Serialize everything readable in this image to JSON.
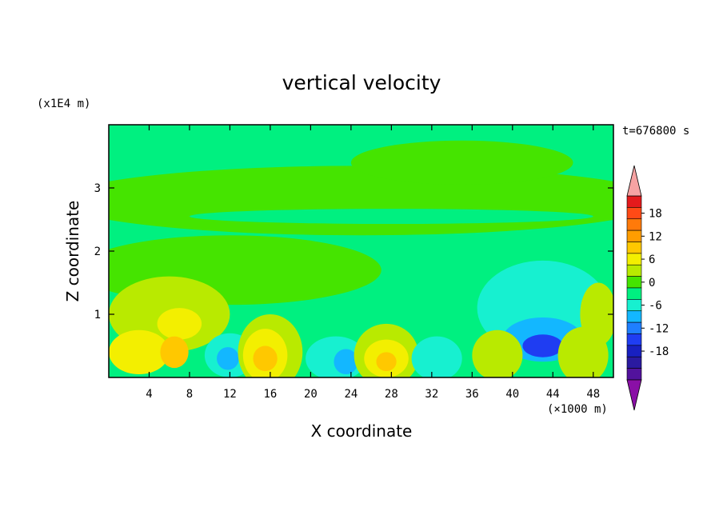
{
  "chart_data": {
    "type": "heatmap",
    "title": "vertical velocity",
    "xlabel": "X coordinate",
    "ylabel": "Z coordinate",
    "x_unit": "(×1000 m)",
    "y_unit": "(x1E4 m)",
    "time_label": "t=676800 s",
    "xlim": [
      0,
      50
    ],
    "ylim": [
      0,
      4
    ],
    "x_ticks": [
      4,
      8,
      12,
      16,
      20,
      24,
      28,
      32,
      36,
      40,
      44,
      48
    ],
    "y_ticks": [
      1,
      2,
      3
    ],
    "colorbar": {
      "ticks": [
        18,
        12,
        6,
        0,
        -6,
        -12,
        -18
      ],
      "levels": [
        21,
        18,
        15,
        12,
        9,
        6,
        3,
        0,
        -3,
        -6,
        -9,
        -12,
        -15,
        -18,
        -21
      ],
      "colors": [
        "#e41a1c",
        "#ff4a16",
        "#ff7a0a",
        "#ff9d00",
        "#ffc800",
        "#f3ef00",
        "#b9ea00",
        "#45e400",
        "#00f080",
        "#17f0d0",
        "#13b7ff",
        "#1f7fff",
        "#1f3df2",
        "#1820c0",
        "#2a1aa0",
        "#52129d"
      ],
      "over_color": "#f6a3a3",
      "under_color": "#8a0fa6"
    },
    "background_value_color": "#00f080",
    "blobs": [
      {
        "x": 25,
        "z": 2.8,
        "rx": 30,
        "rz": 0.55,
        "color": "#45e400"
      },
      {
        "x": 35,
        "z": 3.4,
        "rx": 11,
        "rz": 0.35,
        "color": "#45e400"
      },
      {
        "x": 28,
        "z": 2.55,
        "rx": 20,
        "rz": 0.12,
        "color": "#00f080"
      },
      {
        "x": 12,
        "z": 1.7,
        "rx": 15,
        "rz": 0.55,
        "color": "#45e400"
      },
      {
        "x": 43,
        "z": 1.1,
        "rx": 6.5,
        "rz": 0.75,
        "color": "#17f0d0"
      },
      {
        "x": 43,
        "z": 0.6,
        "rx": 4,
        "rz": 0.35,
        "color": "#13b7ff"
      },
      {
        "x": 43,
        "z": 0.5,
        "rx": 2,
        "rz": 0.18,
        "color": "#1f3df2"
      },
      {
        "x": 48.5,
        "z": 1.0,
        "rx": 1.8,
        "rz": 0.5,
        "color": "#b9ea00"
      },
      {
        "x": 6,
        "z": 1.0,
        "rx": 6,
        "rz": 0.6,
        "color": "#b9ea00"
      },
      {
        "x": 7,
        "z": 0.85,
        "rx": 2.2,
        "rz": 0.25,
        "color": "#f3ef00"
      },
      {
        "x": 3,
        "z": 0.4,
        "rx": 3,
        "rz": 0.35,
        "color": "#f3ef00"
      },
      {
        "x": 6.5,
        "z": 0.4,
        "rx": 1.4,
        "rz": 0.25,
        "color": "#ffc800"
      },
      {
        "x": 12,
        "z": 0.35,
        "rx": 2.5,
        "rz": 0.35,
        "color": "#17f0d0"
      },
      {
        "x": 11.8,
        "z": 0.3,
        "rx": 1.1,
        "rz": 0.18,
        "color": "#13b7ff"
      },
      {
        "x": 16,
        "z": 0.4,
        "rx": 3.2,
        "rz": 0.6,
        "color": "#b9ea00"
      },
      {
        "x": 15.5,
        "z": 0.35,
        "rx": 2.2,
        "rz": 0.42,
        "color": "#f3ef00"
      },
      {
        "x": 15.5,
        "z": 0.3,
        "rx": 1.2,
        "rz": 0.2,
        "color": "#ffc800"
      },
      {
        "x": 22.5,
        "z": 0.3,
        "rx": 3,
        "rz": 0.35,
        "color": "#17f0d0"
      },
      {
        "x": 23.5,
        "z": 0.25,
        "rx": 1.2,
        "rz": 0.2,
        "color": "#13b7ff"
      },
      {
        "x": 27.5,
        "z": 0.35,
        "rx": 3.2,
        "rz": 0.5,
        "color": "#b9ea00"
      },
      {
        "x": 27.5,
        "z": 0.3,
        "rx": 2.2,
        "rz": 0.3,
        "color": "#f3ef00"
      },
      {
        "x": 27.5,
        "z": 0.25,
        "rx": 1,
        "rz": 0.15,
        "color": "#ffc800"
      },
      {
        "x": 32.5,
        "z": 0.3,
        "rx": 2.5,
        "rz": 0.35,
        "color": "#17f0d0"
      },
      {
        "x": 38.5,
        "z": 0.35,
        "rx": 2.5,
        "rz": 0.4,
        "color": "#b9ea00"
      },
      {
        "x": 47,
        "z": 0.35,
        "rx": 2.5,
        "rz": 0.45,
        "color": "#b9ea00"
      }
    ]
  }
}
